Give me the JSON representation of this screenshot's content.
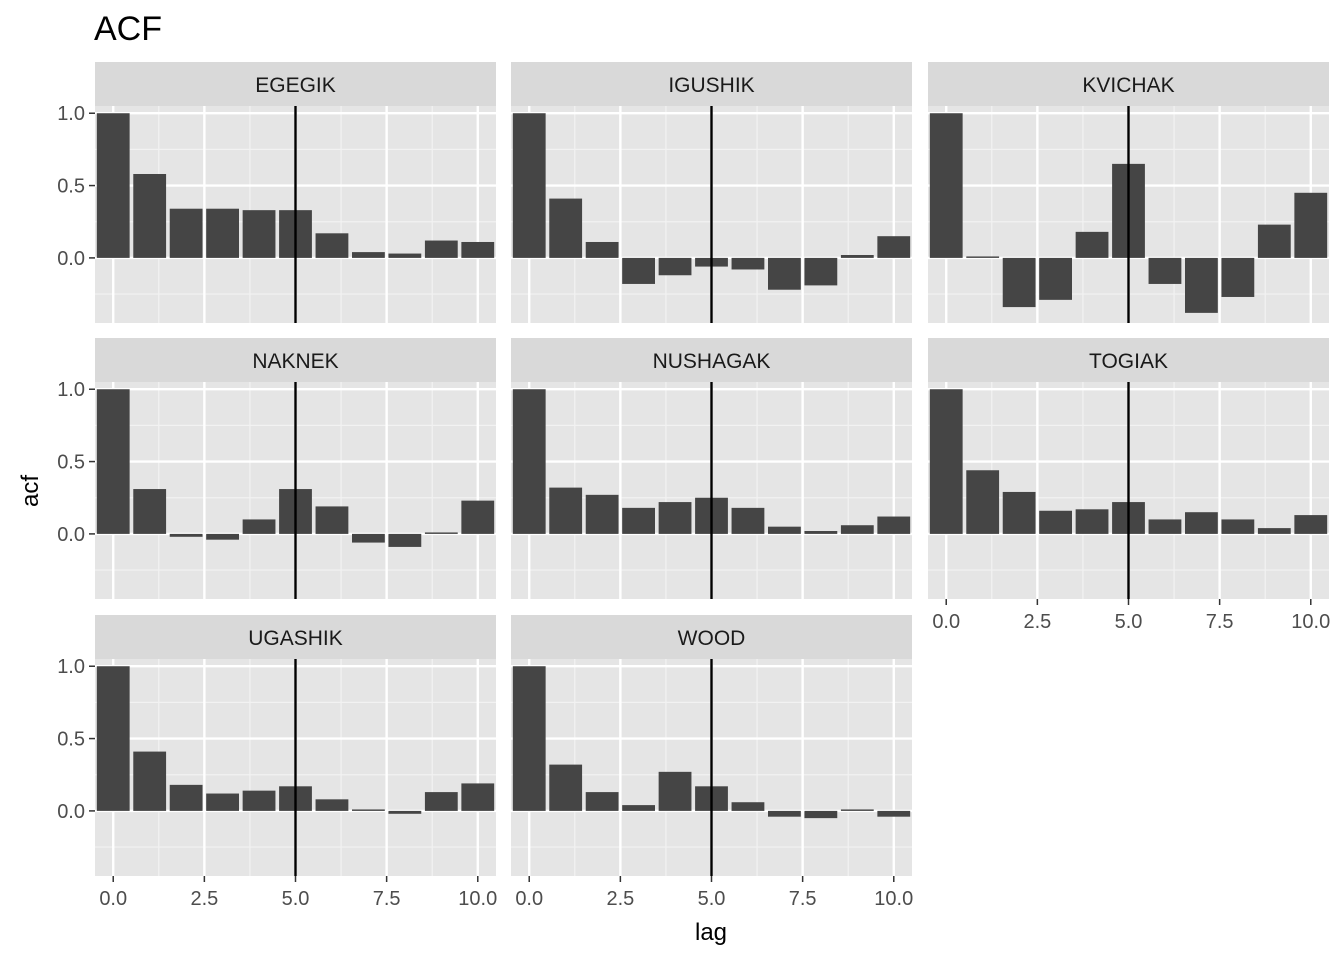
{
  "chart_data": {
    "type": "bar",
    "title": "ACF",
    "xlabel": "lag",
    "ylabel": "acf",
    "xlim": [
      -0.5,
      10.5
    ],
    "ylim": [
      -0.45,
      1.05
    ],
    "x_ticks": [
      0.0,
      2.5,
      5.0,
      7.5,
      10.0
    ],
    "x_tick_labels": [
      "0.0",
      "2.5",
      "5.0",
      "7.5",
      "10.0"
    ],
    "y_ticks": [
      0.0,
      0.5,
      1.0
    ],
    "y_tick_labels": [
      "0.0",
      "0.5",
      "1.0"
    ],
    "vertical_line_x": 5,
    "grid": true,
    "x": [
      0,
      1,
      2,
      3,
      4,
      5,
      6,
      7,
      8,
      9,
      10
    ],
    "bar_color": "#454545",
    "panel_background": "#e5e5e5",
    "strip_background": "#d9d9d9",
    "series": [
      {
        "name": "EGEGIK",
        "values": [
          1.0,
          0.58,
          0.34,
          0.34,
          0.33,
          0.33,
          0.17,
          0.04,
          0.03,
          0.12,
          0.11
        ]
      },
      {
        "name": "IGUSHIK",
        "values": [
          1.0,
          0.41,
          0.11,
          -0.18,
          -0.12,
          -0.06,
          -0.08,
          -0.22,
          -0.19,
          0.02,
          0.15
        ]
      },
      {
        "name": "KVICHAK",
        "values": [
          1.0,
          0.01,
          -0.34,
          -0.29,
          0.18,
          0.65,
          -0.18,
          -0.38,
          -0.27,
          0.23,
          0.45
        ]
      },
      {
        "name": "NAKNEK",
        "values": [
          1.0,
          0.31,
          -0.02,
          -0.04,
          0.1,
          0.31,
          0.19,
          -0.06,
          -0.09,
          0.01,
          0.23
        ]
      },
      {
        "name": "NUSHAGAK",
        "values": [
          1.0,
          0.32,
          0.27,
          0.18,
          0.22,
          0.25,
          0.18,
          0.05,
          0.02,
          0.06,
          0.12
        ]
      },
      {
        "name": "TOGIAK",
        "values": [
          1.0,
          0.44,
          0.29,
          0.16,
          0.17,
          0.22,
          0.1,
          0.15,
          0.1,
          0.04,
          0.13
        ]
      },
      {
        "name": "UGASHIK",
        "values": [
          1.0,
          0.41,
          0.18,
          0.12,
          0.14,
          0.17,
          0.08,
          0.01,
          -0.02,
          0.13,
          0.19
        ]
      },
      {
        "name": "WOOD",
        "values": [
          1.0,
          0.32,
          0.13,
          0.04,
          0.27,
          0.17,
          0.06,
          -0.04,
          -0.05,
          0.01,
          -0.04
        ]
      }
    ]
  }
}
